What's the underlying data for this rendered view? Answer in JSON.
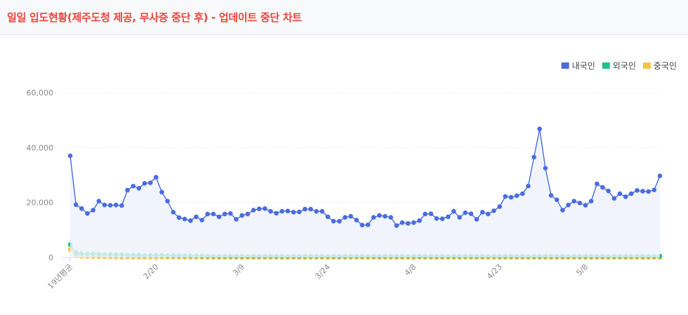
{
  "header": {
    "title": "일일 입도현황(제주도청 제공, 무사증 중단 후) - 업데이트 중단 차트"
  },
  "chart_data": {
    "type": "line",
    "title": "",
    "xlabel": "",
    "ylabel": "",
    "ylim": [
      0,
      60000
    ],
    "yticks": [
      0,
      20000,
      40000,
      60000
    ],
    "ytick_labels": [
      "0",
      "20,000",
      "40,000",
      "60,000"
    ],
    "legend_position": "top-right",
    "grid": true,
    "x_tick_labels": [
      {
        "index": 0,
        "label": "19년평균"
      },
      {
        "index": 15,
        "label": "2/20"
      },
      {
        "index": 30,
        "label": "3/9"
      },
      {
        "index": 45,
        "label": "3/24"
      },
      {
        "index": 60,
        "label": "4/8"
      },
      {
        "index": 75,
        "label": "4/23"
      },
      {
        "index": 90,
        "label": "5/8"
      }
    ],
    "series": [
      {
        "name": "내국인",
        "color": "#4a6cdf",
        "values": [
          37000,
          19200,
          17800,
          16000,
          17200,
          20500,
          19100,
          19000,
          19100,
          18900,
          24500,
          26000,
          25200,
          27000,
          27200,
          29200,
          23800,
          20500,
          16500,
          14500,
          14000,
          13400,
          14800,
          13600,
          15800,
          15800,
          14800,
          15800,
          16000,
          13900,
          15300,
          15800,
          17200,
          17700,
          17800,
          16800,
          16100,
          16800,
          16900,
          16500,
          16600,
          17600,
          17600,
          16800,
          16800,
          14800,
          13200,
          13200,
          14600,
          15000,
          13600,
          11800,
          11900,
          14600,
          15300,
          15000,
          14600,
          11600,
          12700,
          12400,
          12700,
          13400,
          15800,
          15900,
          14200,
          14100,
          14800,
          16800,
          14600,
          16300,
          15900,
          13900,
          16500,
          15800,
          17000,
          18500,
          22200,
          21900,
          22500,
          23200,
          26000,
          36500,
          46800,
          32500,
          22600,
          21000,
          17200,
          19100,
          20500,
          19800,
          19000,
          20500,
          26800,
          25500,
          24200,
          21500,
          23200,
          22100,
          23200,
          24400,
          24100,
          24000,
          24600,
          29700
        ]
      },
      {
        "name": "외국인",
        "color": "#1ec48a",
        "values": [
          4700,
          1700,
          1400,
          1300,
          1300,
          1200,
          1100,
          1100,
          1000,
          1000,
          900,
          900,
          900,
          800,
          800,
          800,
          800,
          700,
          700,
          700,
          600,
          600,
          600,
          550,
          550,
          500,
          500,
          500,
          500,
          500,
          500,
          500,
          500,
          500,
          500,
          500,
          500,
          500,
          500,
          500,
          500,
          500,
          500,
          500,
          500,
          500,
          500,
          500,
          500,
          500,
          500,
          500,
          500,
          500,
          500,
          500,
          500,
          500,
          500,
          500,
          500,
          500,
          500,
          500,
          500,
          500,
          500,
          500,
          500,
          500,
          500,
          500,
          500,
          500,
          500,
          500,
          500,
          500,
          500,
          500,
          500,
          500,
          500,
          500,
          500,
          500,
          500,
          500,
          500,
          500,
          500,
          500,
          500,
          500,
          500,
          500,
          500,
          500,
          500,
          500,
          500,
          500,
          500,
          500
        ]
      },
      {
        "name": "중국인",
        "color": "#f4c443",
        "values": [
          3000,
          800,
          400,
          300,
          300,
          250,
          220,
          200,
          180,
          160,
          150,
          140,
          130,
          120,
          110,
          100,
          100,
          90,
          80,
          70,
          60,
          50,
          40,
          30,
          20,
          15,
          10,
          8,
          5,
          3,
          2,
          1,
          1,
          1,
          1,
          1,
          1,
          1,
          1,
          1,
          1,
          1,
          1,
          1,
          1,
          1,
          1,
          1,
          1,
          1,
          1,
          1,
          1,
          1,
          1,
          1,
          1,
          1,
          1,
          1,
          1,
          1,
          1,
          1,
          1,
          1,
          1,
          1,
          1,
          1,
          1,
          1,
          1,
          1,
          1,
          1,
          1,
          1,
          1,
          1,
          1,
          1,
          1,
          1,
          1,
          1,
          1,
          1,
          1,
          1,
          1,
          1,
          1,
          1,
          1,
          1,
          1,
          1,
          1,
          1,
          1,
          1,
          1,
          1
        ]
      }
    ]
  }
}
